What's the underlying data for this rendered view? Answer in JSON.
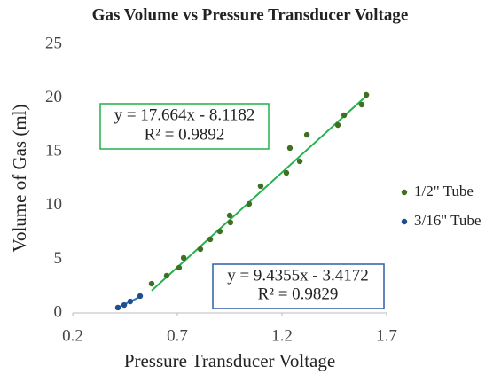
{
  "chart_data": {
    "type": "scatter",
    "title": "Gas Volume vs Pressure Transducer Voltage",
    "x_label": "Pressure Transducer Voltage",
    "y_label": "Volume of Gas (ml)",
    "xlim": [
      0.2,
      1.7
    ],
    "xticks": [
      0.2,
      0.7,
      1.2,
      1.7
    ],
    "ylim": [
      0,
      25
    ],
    "yticks": [
      0,
      5,
      10,
      15,
      20,
      25
    ],
    "grid": false,
    "legend": "right",
    "series": [
      {
        "name": "1/2\" Tube",
        "color": "#3f6f22",
        "x": [
          0.577,
          0.649,
          0.708,
          0.73,
          0.81,
          0.857,
          0.903,
          0.95,
          0.954,
          1.043,
          1.098,
          1.221,
          1.238,
          1.285,
          1.319,
          1.467,
          1.497,
          1.581,
          1.603
        ],
        "values": [
          2.72,
          3.47,
          4.21,
          5.12,
          5.94,
          6.85,
          7.59,
          9.08,
          8.42,
          10.15,
          11.8,
          13.04,
          15.35,
          14.11,
          16.58,
          17.49,
          18.4,
          19.39,
          20.3
        ],
        "trendline": {
          "color": "#22b14c",
          "slope": 17.664,
          "intercept": -8.1182,
          "equation": "y = 17.664x - 8.1182",
          "r2": 0.9892,
          "r2_label": "R² = 0.9892"
        }
      },
      {
        "name": "3/16\" Tube",
        "color": "#1f4e8c",
        "x": [
          0.416,
          0.446,
          0.475,
          0.522
        ],
        "values": [
          0.5,
          0.74,
          1.07,
          1.57
        ],
        "trendline": {
          "color": "#2e75b6",
          "slope": 9.4355,
          "intercept": -3.4172,
          "equation": "y = 9.4355x - 3.4172",
          "r2": 0.9829,
          "r2_label": "R² = 0.9829"
        }
      }
    ]
  }
}
